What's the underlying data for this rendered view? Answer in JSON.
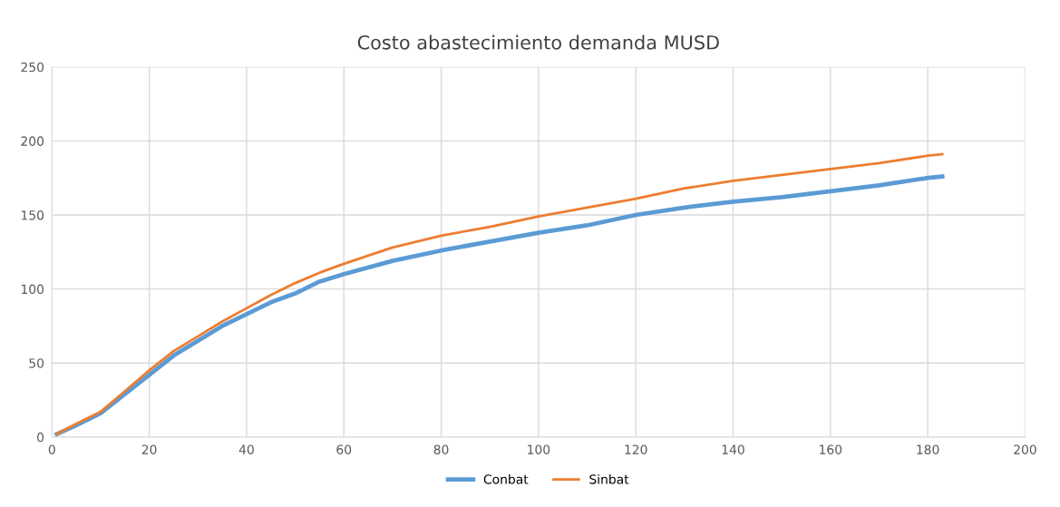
{
  "chart_data": {
    "type": "line",
    "title": "Costo abastecimiento demanda MUSD",
    "x": [
      1,
      5,
      10,
      15,
      20,
      25,
      30,
      35,
      40,
      45,
      50,
      55,
      60,
      70,
      80,
      90,
      100,
      110,
      120,
      130,
      140,
      150,
      160,
      170,
      180,
      183
    ],
    "series": [
      {
        "name": "Conbat",
        "color": "#5b9bd5",
        "values": [
          2,
          8,
          16,
          29,
          42,
          55,
          65,
          75,
          83,
          91,
          97,
          105,
          110,
          119,
          126,
          132,
          138,
          143,
          150,
          155,
          159,
          162,
          166,
          170,
          175,
          176
        ]
      },
      {
        "name": "Sinbat",
        "color": "#ed7d31",
        "values": [
          2,
          9,
          17,
          31,
          45,
          58,
          68,
          78,
          87,
          96,
          104,
          111,
          117,
          128,
          136,
          142,
          149,
          155,
          161,
          168,
          173,
          177,
          181,
          185,
          190,
          191
        ]
      }
    ],
    "xlim": [
      0,
      200
    ],
    "xticks": [
      0,
      20,
      40,
      60,
      80,
      100,
      120,
      140,
      160,
      180,
      200
    ],
    "ylim": [
      0,
      250
    ],
    "yticks": [
      0,
      50,
      100,
      150,
      200,
      250
    ],
    "grid": true,
    "legend": "bottom",
    "marker": "none",
    "line_style": "solid"
  }
}
